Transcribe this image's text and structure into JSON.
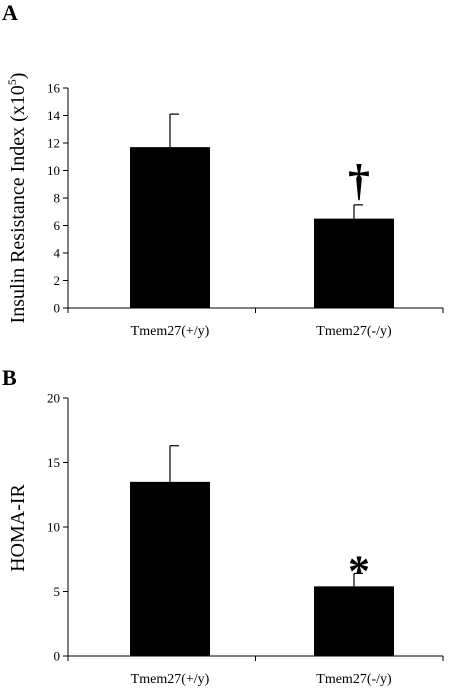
{
  "chart_data": [
    {
      "type": "bar",
      "panel": "A",
      "categories": [
        "Tmem27(+/y)",
        "Tmem27(-/y)"
      ],
      "values": [
        11.7,
        6.5
      ],
      "errors": [
        2.4,
        1.0
      ],
      "ylabel": "Insulin Resistance Index (x10",
      "ylabel_sup": "5",
      "ylabel_close": ")",
      "ylim": [
        0,
        16
      ],
      "yticks": [
        "0",
        "2",
        "4",
        "6",
        "8",
        "10",
        "12",
        "14",
        "16"
      ],
      "annotations": [
        {
          "category": "Tmem27(-/y)",
          "text": "†"
        }
      ],
      "grid": false,
      "bar_color": "#000000"
    },
    {
      "type": "bar",
      "panel": "B",
      "categories": [
        "Tmem27(+/y)",
        "Tmem27(-/y)"
      ],
      "values": [
        13.5,
        5.4
      ],
      "errors": [
        2.8,
        1.0
      ],
      "ylabel": "HOMA-IR",
      "ylim": [
        0,
        20
      ],
      "yticks": [
        "0",
        "5",
        "10",
        "15",
        "20"
      ],
      "annotations": [
        {
          "category": "Tmem27(-/y)",
          "text": "*"
        }
      ],
      "grid": false,
      "bar_color": "#000000"
    }
  ]
}
